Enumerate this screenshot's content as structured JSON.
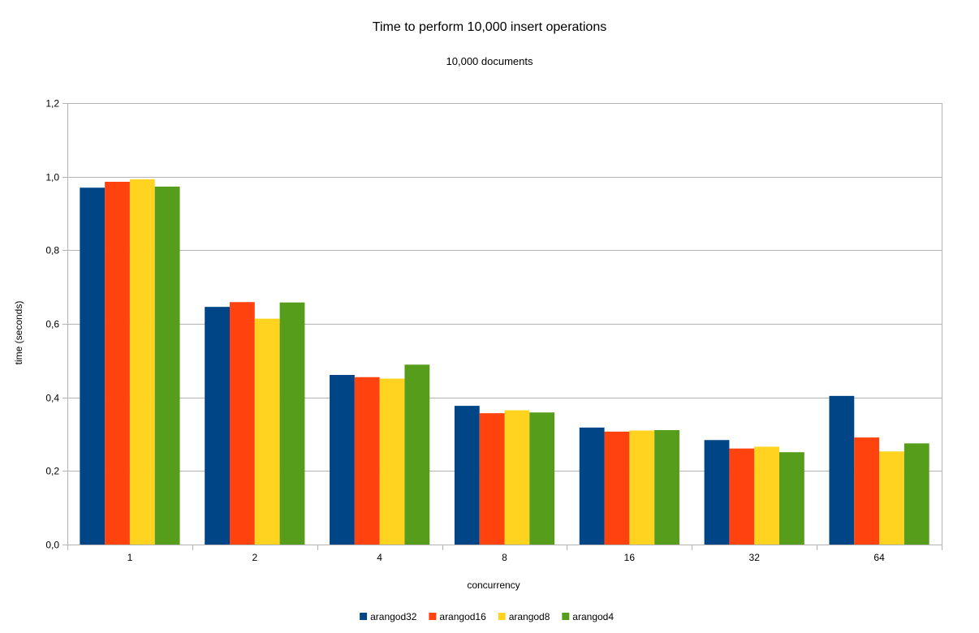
{
  "chart_data": {
    "type": "bar",
    "title": "Time to perform 10,000 insert operations",
    "subtitle": "10,000 documents",
    "xlabel": "concurrency",
    "ylabel": "time (seconds)",
    "categories": [
      "1",
      "2",
      "4",
      "8",
      "16",
      "32",
      "64"
    ],
    "ylim": [
      0,
      1.2
    ],
    "yticks": [
      0,
      0.2,
      0.4,
      0.6,
      0.8,
      1.0,
      1.2
    ],
    "ytick_labels": [
      "0,0",
      "0,2",
      "0,4",
      "0,6",
      "0,8",
      "1,0",
      "1,2"
    ],
    "grid": true,
    "legend_position": "bottom",
    "series": [
      {
        "name": "arangod32",
        "color": "#004586",
        "values": [
          0.97,
          0.646,
          0.461,
          0.377,
          0.318,
          0.284,
          0.404
        ]
      },
      {
        "name": "arangod16",
        "color": "#ff420e",
        "values": [
          0.986,
          0.659,
          0.455,
          0.357,
          0.307,
          0.261,
          0.291
        ]
      },
      {
        "name": "arangod8",
        "color": "#ffd320",
        "values": [
          0.993,
          0.614,
          0.451,
          0.365,
          0.31,
          0.266,
          0.253
        ]
      },
      {
        "name": "arangod4",
        "color": "#579d1c",
        "values": [
          0.973,
          0.658,
          0.489,
          0.359,
          0.311,
          0.251,
          0.275
        ]
      }
    ]
  }
}
